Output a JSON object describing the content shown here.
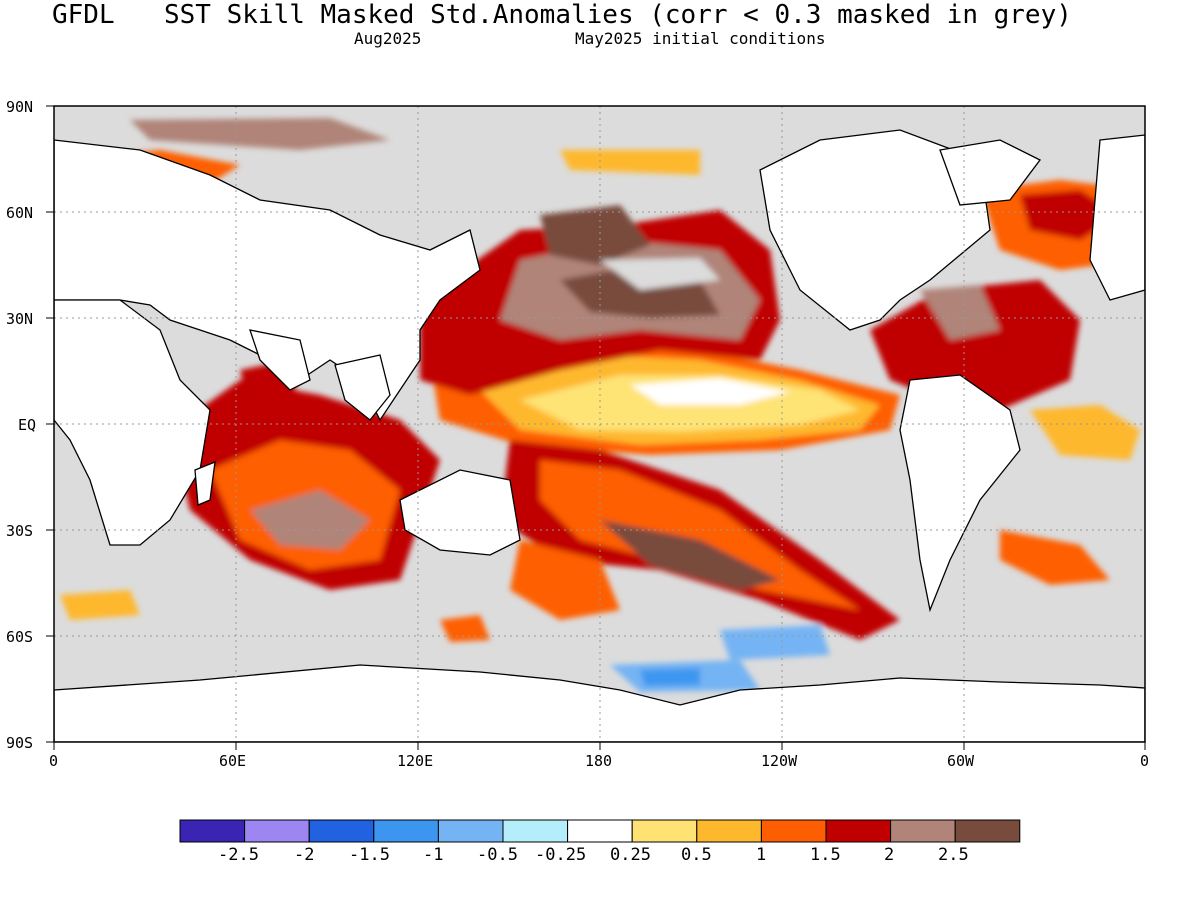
{
  "header": {
    "model": "GFDL",
    "title": "SST Skill Masked Std.Anomalies (corr < 0.3 masked in grey)",
    "target_month": "Aug2025",
    "init": "May2025 initial conditions"
  },
  "axes": {
    "lat_labels": [
      "90N",
      "60N",
      "30N",
      "EQ",
      "30S",
      "60S",
      "90S"
    ],
    "lon_labels": [
      "0",
      "60E",
      "120E",
      "180",
      "120W",
      "60W",
      "0"
    ]
  },
  "colorbar": {
    "colors": [
      "#3a24b4",
      "#9d86f2",
      "#2062e0",
      "#3c96f0",
      "#74b4f4",
      "#b4eefa",
      "#ffffff",
      "#fee374",
      "#feb82e",
      "#fe5e02",
      "#c00000",
      "#b08478",
      "#784c3c"
    ],
    "labels": [
      "-2.5",
      "-2",
      "-1.5",
      "-1",
      "-0.5",
      "-0.25",
      "0.25",
      "0.5",
      "1",
      "1.5",
      "2",
      "2.5"
    ]
  },
  "colors": {
    "mask_grey": "#dcdcdc",
    "land": "#ffffff"
  }
}
